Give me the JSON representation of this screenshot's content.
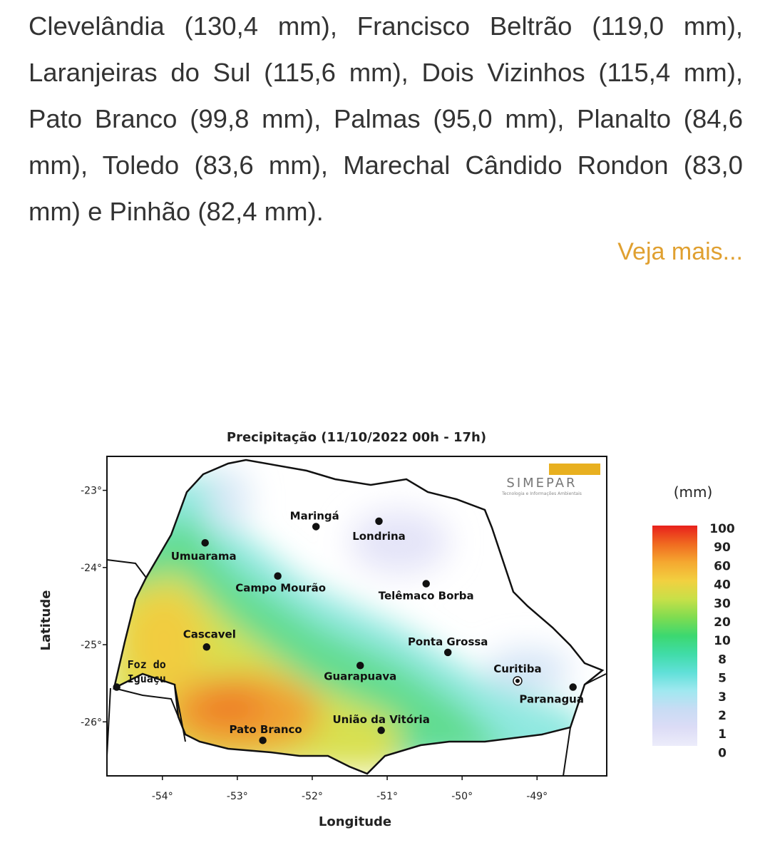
{
  "article": {
    "paragraph": "Clevelândia (130,4 mm), Francisco Beltrão (119,0 mm), Laranjeiras do Sul (115,6 mm), Dois Vizinhos (115,4 mm), Pato Branco (99,8 mm), Palmas (95,0 mm), Planalto (84,6 mm), Toledo (83,6 mm), Marechal Cândido Rondon (83,0 mm) e Pinhão (82,4 mm).",
    "link": "Veja mais..."
  },
  "map": {
    "title": "Precipitação (11/10/2022 00h - 17h)",
    "logo": "SIMEPAR",
    "logo_tagline": "Tecnologia e Informações Ambientais",
    "x_label": "Longitude",
    "y_label": "Latitude",
    "xlim": [
      -54.74,
      -48.07
    ],
    "ylim": [
      -26.7,
      -22.56
    ],
    "xticks": [
      {
        "value": -54,
        "label": "-54°"
      },
      {
        "value": -53,
        "label": "-53°"
      },
      {
        "value": -52,
        "label": "-52°"
      },
      {
        "value": -51,
        "label": "-51°"
      },
      {
        "value": -50,
        "label": "-50°"
      },
      {
        "value": -49,
        "label": "-49°"
      }
    ],
    "yticks": [
      {
        "value": -23,
        "label": "-23°"
      },
      {
        "value": -24,
        "label": "-24°"
      },
      {
        "value": -25,
        "label": "-25°"
      },
      {
        "value": -26,
        "label": "-26°"
      }
    ],
    "cities": [
      {
        "name": "Maringá",
        "lon": -51.95,
        "lat": -23.47
      },
      {
        "name": "Londrina",
        "lon": -51.11,
        "lat": -23.4
      },
      {
        "name": "Umuarama",
        "lon": -53.43,
        "lat": -23.68
      },
      {
        "name": "Campo Mourão",
        "lon": -52.46,
        "lat": -24.11
      },
      {
        "name": "Telêmaco Borba",
        "lon": -50.48,
        "lat": -24.21
      },
      {
        "name": "Cascavel",
        "lon": -53.41,
        "lat": -25.03
      },
      {
        "name": "Ponta Grossa",
        "lon": -50.19,
        "lat": -25.1
      },
      {
        "name": "Guarapuava",
        "lon": -51.36,
        "lat": -25.27
      },
      {
        "name": "Foz do Iguaçu",
        "lon": -54.61,
        "lat": -25.55
      },
      {
        "name": "Curitiba",
        "lon": -49.26,
        "lat": -25.47
      },
      {
        "name": "Paranaguá",
        "lon": -48.52,
        "lat": -25.55
      },
      {
        "name": "União da Vitória",
        "lon": -51.08,
        "lat": -26.11
      },
      {
        "name": "Pato Branco",
        "lon": -52.66,
        "lat": -26.24
      }
    ],
    "legend_unit": "(mm)",
    "legend": [
      100,
      90,
      60,
      40,
      30,
      20,
      10,
      8,
      5,
      3,
      2,
      1,
      0
    ],
    "legend_colors": [
      "#e8201c",
      "#f06a20",
      "#f5a830",
      "#f2d040",
      "#c8e048",
      "#7fdc50",
      "#3cd870",
      "#40dca8",
      "#60e0d8",
      "#a0e8f0",
      "#c8dcf4",
      "#dcdcf6",
      "#ececfa"
    ]
  }
}
